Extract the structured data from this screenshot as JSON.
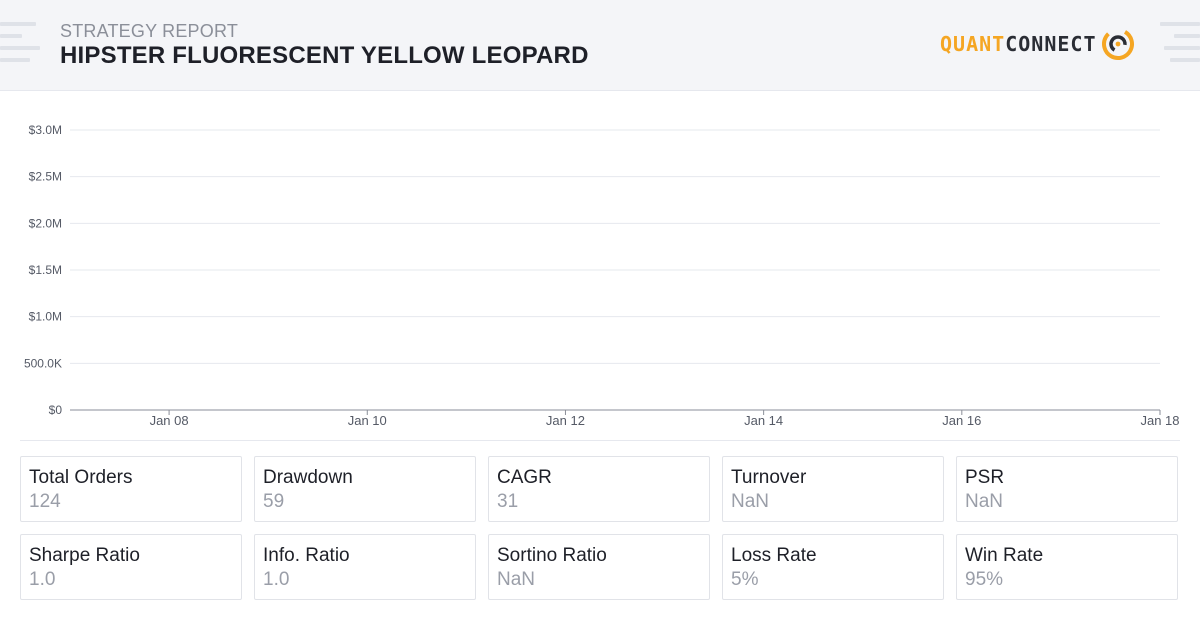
{
  "header": {
    "subtitle": "STRATEGY REPORT",
    "title": "HIPSTER FLUORESCENT YELLOW LEOPARD",
    "logo_part1": "QUANT",
    "logo_part2": "CONNECT"
  },
  "colors": {
    "accent": "#f5a623",
    "text_dark": "#1e2028",
    "text_muted": "#9a9ea8",
    "grid": "#e6e8ee"
  },
  "chart_data": {
    "type": "line",
    "title": "",
    "xlabel": "",
    "ylabel": "",
    "ylim": [
      0,
      3000000
    ],
    "xlim": [
      "2024-01-07",
      "2024-01-18"
    ],
    "y_ticks": [
      {
        "value": 0,
        "label": "$0"
      },
      {
        "value": 500000,
        "label": "500.0K"
      },
      {
        "value": 1000000,
        "label": "$1.0M"
      },
      {
        "value": 1500000,
        "label": "$1.5M"
      },
      {
        "value": 2000000,
        "label": "$2.0M"
      },
      {
        "value": 2500000,
        "label": "$2.5M"
      },
      {
        "value": 3000000,
        "label": "$3.0M"
      }
    ],
    "x_ticks": [
      {
        "value": "2024-01-08",
        "label": "Jan 08"
      },
      {
        "value": "2024-01-10",
        "label": "Jan 10"
      },
      {
        "value": "2024-01-12",
        "label": "Jan 12"
      },
      {
        "value": "2024-01-14",
        "label": "Jan 14"
      },
      {
        "value": "2024-01-16",
        "label": "Jan 16"
      },
      {
        "value": "2024-01-18",
        "label": "Jan 18"
      }
    ],
    "grid": true,
    "series": []
  },
  "stats": [
    {
      "label": "Total Orders",
      "value": "124"
    },
    {
      "label": "Drawdown",
      "value": "59"
    },
    {
      "label": "CAGR",
      "value": "31"
    },
    {
      "label": "Turnover",
      "value": "NaN"
    },
    {
      "label": "PSR",
      "value": "NaN"
    },
    {
      "label": "Sharpe Ratio",
      "value": "1.0"
    },
    {
      "label": "Info. Ratio",
      "value": "1.0"
    },
    {
      "label": "Sortino Ratio",
      "value": "NaN"
    },
    {
      "label": "Loss Rate",
      "value": "5%"
    },
    {
      "label": "Win Rate",
      "value": "95%"
    }
  ]
}
